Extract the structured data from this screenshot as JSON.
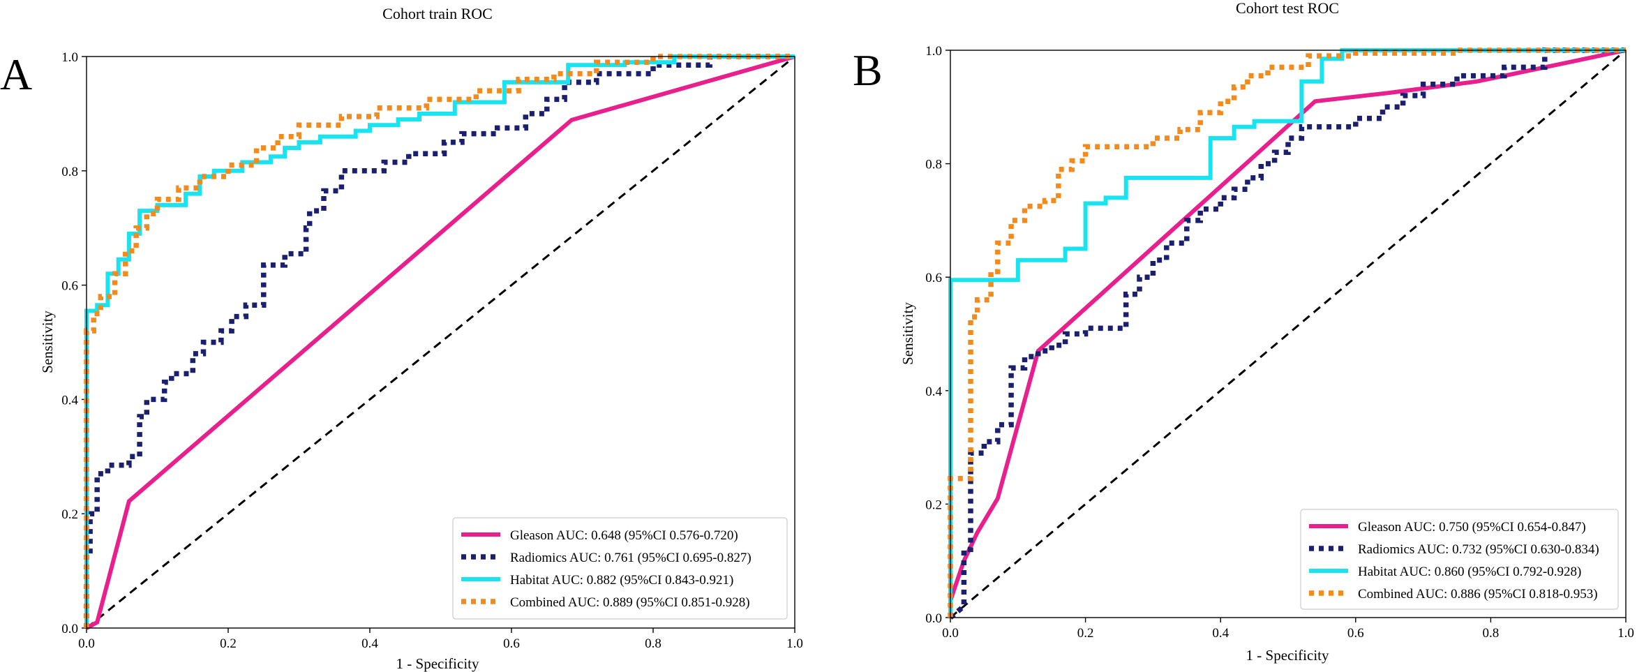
{
  "colors": {
    "gleason": "#e8208e",
    "radiomics": "#1a1f6e",
    "habitat": "#19e3ef",
    "combined": "#f28a1c",
    "diagonal": "#000000"
  },
  "chart_data": [
    {
      "type": "line",
      "panel_letter": "A",
      "title": "Cohort train ROC",
      "xlabel": "1 - Specificity",
      "ylabel": "Sensitivity",
      "xlim": [
        0,
        1
      ],
      "ylim": [
        0,
        1
      ],
      "x_ticks": [
        0.0,
        0.2,
        0.4,
        0.6,
        0.8,
        1.0
      ],
      "x_tick_labels": [
        "0.0",
        "0.2",
        "0.4",
        "0.6",
        "0.8",
        "1.0"
      ],
      "y_ticks": [
        0.0,
        0.2,
        0.4,
        0.6,
        0.8,
        1.0
      ],
      "y_tick_labels": [
        "0.0",
        "0.2",
        "0.4",
        "0.6",
        "0.8",
        "1.0"
      ],
      "legend_position": "lower-right",
      "series": [
        {
          "key": "gleason",
          "name": "Gleason AUC: 0.648 (95%CI 0.576-0.720)",
          "style": "solid",
          "x": [
            0,
            0.015,
            0.06,
            0.685,
            1.0
          ],
          "y": [
            0,
            0.01,
            0.222,
            0.889,
            1.0
          ]
        },
        {
          "key": "radiomics",
          "name": "Radiomics AUC: 0.761 (95%CI 0.695-0.827)",
          "style": "dotted",
          "x": [
            0,
            0,
            0.005,
            0.005,
            0.015,
            0.015,
            0.03,
            0.03,
            0.06,
            0.06,
            0.075,
            0.075,
            0.085,
            0.085,
            0.11,
            0.11,
            0.12,
            0.12,
            0.15,
            0.15,
            0.165,
            0.165,
            0.19,
            0.19,
            0.205,
            0.205,
            0.225,
            0.225,
            0.25,
            0.25,
            0.28,
            0.28,
            0.31,
            0.31,
            0.315,
            0.315,
            0.335,
            0.335,
            0.36,
            0.36,
            0.42,
            0.42,
            0.455,
            0.455,
            0.505,
            0.505,
            0.53,
            0.53,
            0.58,
            0.58,
            0.62,
            0.62,
            0.65,
            0.65,
            0.675,
            0.675,
            0.72,
            0.72,
            0.8,
            0.8,
            0.88,
            0.88,
            1.0
          ],
          "y": [
            0,
            0.13,
            0.13,
            0.2,
            0.2,
            0.27,
            0.27,
            0.285,
            0.285,
            0.3,
            0.3,
            0.37,
            0.37,
            0.4,
            0.4,
            0.43,
            0.43,
            0.445,
            0.445,
            0.48,
            0.48,
            0.5,
            0.5,
            0.52,
            0.52,
            0.545,
            0.545,
            0.565,
            0.565,
            0.635,
            0.635,
            0.655,
            0.655,
            0.7,
            0.7,
            0.73,
            0.73,
            0.765,
            0.765,
            0.8,
            0.8,
            0.815,
            0.815,
            0.83,
            0.83,
            0.85,
            0.85,
            0.865,
            0.865,
            0.875,
            0.875,
            0.9,
            0.9,
            0.925,
            0.925,
            0.955,
            0.955,
            0.97,
            0.97,
            0.985,
            0.985,
            1.0,
            1.0
          ]
        },
        {
          "key": "habitat",
          "name": "Habitat AUC: 0.882 (95%CI 0.843-0.921)",
          "style": "solid",
          "x": [
            0,
            0,
            0.015,
            0.015,
            0.03,
            0.03,
            0.045,
            0.045,
            0.06,
            0.06,
            0.075,
            0.075,
            0.1,
            0.1,
            0.14,
            0.14,
            0.16,
            0.16,
            0.18,
            0.18,
            0.22,
            0.22,
            0.26,
            0.26,
            0.28,
            0.28,
            0.3,
            0.3,
            0.33,
            0.33,
            0.38,
            0.38,
            0.4,
            0.4,
            0.44,
            0.44,
            0.47,
            0.47,
            0.52,
            0.52,
            0.59,
            0.59,
            0.68,
            0.68,
            0.76,
            0.76,
            0.83,
            0.83,
            1.0
          ],
          "y": [
            0,
            0.555,
            0.555,
            0.565,
            0.565,
            0.62,
            0.62,
            0.645,
            0.645,
            0.69,
            0.69,
            0.73,
            0.73,
            0.74,
            0.74,
            0.76,
            0.76,
            0.79,
            0.79,
            0.8,
            0.8,
            0.815,
            0.815,
            0.825,
            0.825,
            0.84,
            0.84,
            0.85,
            0.85,
            0.86,
            0.86,
            0.87,
            0.87,
            0.88,
            0.88,
            0.89,
            0.89,
            0.9,
            0.9,
            0.92,
            0.92,
            0.955,
            0.955,
            0.985,
            0.985,
            0.99,
            0.99,
            1.0,
            1.0
          ]
        },
        {
          "key": "combined",
          "name": "Combined AUC: 0.889 (95%CI 0.851-0.928)",
          "style": "dotted",
          "x": [
            0,
            0,
            0.01,
            0.01,
            0.02,
            0.02,
            0.04,
            0.04,
            0.055,
            0.055,
            0.07,
            0.07,
            0.085,
            0.085,
            0.1,
            0.1,
            0.13,
            0.13,
            0.16,
            0.16,
            0.2,
            0.2,
            0.24,
            0.24,
            0.27,
            0.27,
            0.3,
            0.3,
            0.36,
            0.36,
            0.41,
            0.41,
            0.48,
            0.48,
            0.55,
            0.55,
            0.61,
            0.61,
            0.66,
            0.66,
            0.72,
            0.72,
            0.8,
            0.8,
            1.0
          ],
          "y": [
            0,
            0.52,
            0.52,
            0.55,
            0.55,
            0.58,
            0.58,
            0.62,
            0.62,
            0.66,
            0.66,
            0.7,
            0.7,
            0.725,
            0.725,
            0.75,
            0.75,
            0.77,
            0.77,
            0.79,
            0.79,
            0.81,
            0.81,
            0.84,
            0.84,
            0.86,
            0.86,
            0.88,
            0.88,
            0.895,
            0.895,
            0.91,
            0.91,
            0.925,
            0.925,
            0.94,
            0.94,
            0.96,
            0.96,
            0.97,
            0.97,
            0.99,
            0.99,
            1.0,
            1.0
          ]
        }
      ]
    },
    {
      "type": "line",
      "panel_letter": "B",
      "title": "Cohort test ROC",
      "xlabel": "1 - Specificity",
      "ylabel": "Sensitivity",
      "xlim": [
        0,
        1
      ],
      "ylim": [
        0,
        1
      ],
      "x_ticks": [
        0.0,
        0.2,
        0.4,
        0.6,
        0.8,
        1.0
      ],
      "x_tick_labels": [
        "0.0",
        "0.2",
        "0.4",
        "0.6",
        "0.8",
        "1.0"
      ],
      "y_ticks": [
        0.0,
        0.2,
        0.4,
        0.6,
        0.8,
        1.0
      ],
      "y_tick_labels": [
        "0.0",
        "0.2",
        "0.4",
        "0.6",
        "0.8",
        "1.0"
      ],
      "legend_position": "lower-right",
      "series": [
        {
          "key": "gleason",
          "name": "Gleason AUC: 0.750 (95%CI 0.654-0.847)",
          "style": "solid",
          "x": [
            0,
            0.02,
            0.04,
            0.07,
            0.13,
            0.54,
            0.65,
            0.78,
            1.0
          ],
          "y": [
            0.03,
            0.1,
            0.15,
            0.21,
            0.47,
            0.91,
            0.925,
            0.945,
            1.0
          ]
        },
        {
          "key": "radiomics",
          "name": "Radiomics AUC: 0.732 (95%CI 0.630-0.834)",
          "style": "dotted",
          "x": [
            0,
            0.02,
            0.02,
            0.03,
            0.03,
            0.05,
            0.05,
            0.07,
            0.07,
            0.09,
            0.09,
            0.11,
            0.11,
            0.13,
            0.13,
            0.15,
            0.15,
            0.17,
            0.17,
            0.2,
            0.2,
            0.26,
            0.26,
            0.28,
            0.28,
            0.3,
            0.3,
            0.32,
            0.32,
            0.35,
            0.35,
            0.37,
            0.37,
            0.4,
            0.4,
            0.42,
            0.42,
            0.44,
            0.44,
            0.46,
            0.46,
            0.48,
            0.48,
            0.5,
            0.5,
            0.52,
            0.52,
            0.6,
            0.6,
            0.64,
            0.64,
            0.67,
            0.67,
            0.7,
            0.7,
            0.75,
            0.75,
            0.82,
            0.82,
            0.88,
            0.88,
            1.0
          ],
          "y": [
            0,
            0.02,
            0.12,
            0.12,
            0.29,
            0.29,
            0.31,
            0.31,
            0.34,
            0.34,
            0.44,
            0.44,
            0.46,
            0.46,
            0.47,
            0.47,
            0.48,
            0.48,
            0.5,
            0.5,
            0.51,
            0.51,
            0.57,
            0.57,
            0.6,
            0.6,
            0.63,
            0.63,
            0.66,
            0.66,
            0.7,
            0.7,
            0.72,
            0.72,
            0.74,
            0.74,
            0.755,
            0.755,
            0.775,
            0.775,
            0.8,
            0.8,
            0.82,
            0.82,
            0.845,
            0.845,
            0.865,
            0.865,
            0.88,
            0.88,
            0.9,
            0.9,
            0.92,
            0.92,
            0.94,
            0.94,
            0.955,
            0.955,
            0.97,
            0.97,
            1.0,
            1.0
          ]
        },
        {
          "key": "habitat",
          "name": "Habitat AUC: 0.860 (95%CI 0.792-0.928)",
          "style": "solid",
          "x": [
            0,
            0,
            0.1,
            0.1,
            0.17,
            0.17,
            0.2,
            0.2,
            0.23,
            0.23,
            0.26,
            0.26,
            0.385,
            0.385,
            0.42,
            0.42,
            0.45,
            0.45,
            0.52,
            0.52,
            0.55,
            0.55,
            0.58,
            0.58,
            1.0
          ],
          "y": [
            0,
            0.595,
            0.595,
            0.63,
            0.63,
            0.65,
            0.65,
            0.73,
            0.73,
            0.74,
            0.74,
            0.775,
            0.775,
            0.845,
            0.845,
            0.865,
            0.865,
            0.875,
            0.875,
            0.945,
            0.945,
            0.985,
            0.985,
            1.0,
            1.0
          ]
        },
        {
          "key": "combined",
          "name": "Combined AUC: 0.886 (95%CI 0.818-0.953)",
          "style": "dotted",
          "x": [
            0,
            0,
            0.03,
            0.03,
            0.04,
            0.04,
            0.06,
            0.06,
            0.07,
            0.07,
            0.09,
            0.09,
            0.11,
            0.11,
            0.14,
            0.14,
            0.16,
            0.16,
            0.18,
            0.18,
            0.2,
            0.2,
            0.3,
            0.3,
            0.34,
            0.34,
            0.37,
            0.37,
            0.4,
            0.4,
            0.42,
            0.42,
            0.44,
            0.44,
            0.47,
            0.47,
            0.53,
            0.53,
            0.6,
            0.6,
            0.75,
            0.75,
            1.0
          ],
          "y": [
            0,
            0.245,
            0.245,
            0.53,
            0.53,
            0.56,
            0.56,
            0.61,
            0.61,
            0.66,
            0.66,
            0.7,
            0.7,
            0.725,
            0.725,
            0.735,
            0.735,
            0.79,
            0.79,
            0.805,
            0.805,
            0.83,
            0.83,
            0.845,
            0.845,
            0.86,
            0.86,
            0.89,
            0.89,
            0.91,
            0.91,
            0.935,
            0.935,
            0.955,
            0.955,
            0.97,
            0.97,
            0.99,
            0.99,
            0.995,
            0.995,
            1.0,
            1.0
          ]
        }
      ]
    }
  ]
}
